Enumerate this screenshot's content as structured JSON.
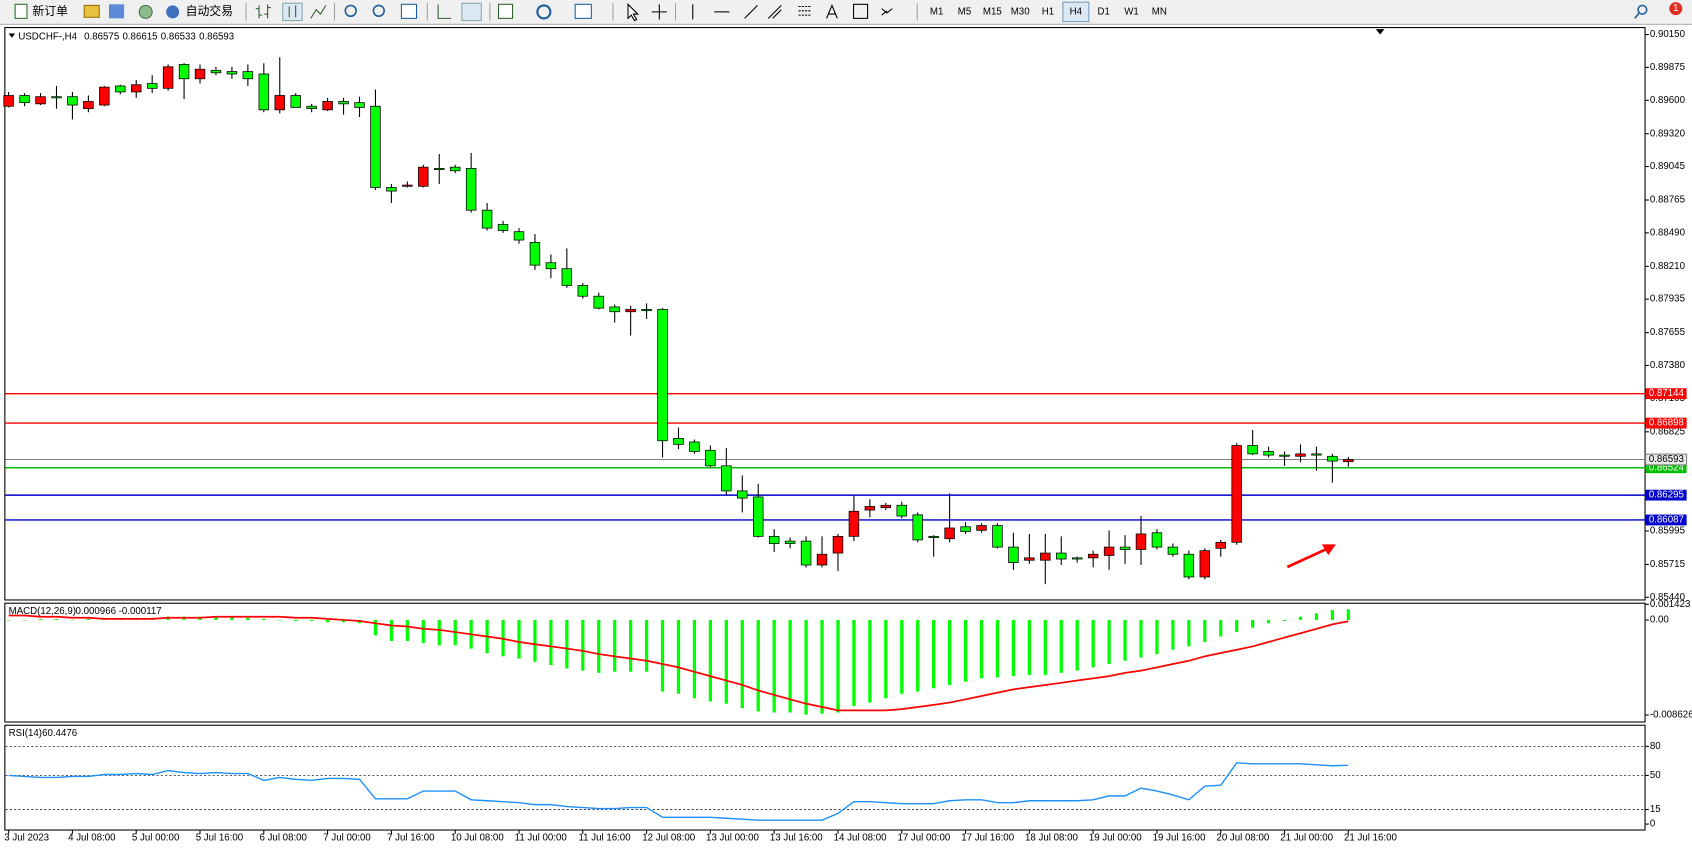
{
  "toolbar": {
    "new_order": "新订单",
    "auto_trading": "自动交易",
    "timeframes": [
      "M1",
      "M5",
      "M15",
      "M30",
      "H1",
      "H4",
      "D1",
      "W1",
      "MN"
    ],
    "active_timeframe": "H4",
    "notifications": 1
  },
  "chart_data": [
    {
      "type": "candlestick",
      "title": "USDCHF-,H4",
      "up_color": "#ff0000",
      "down_color": "#00ff00",
      "price_line_color": "#808080",
      "open": [
        0.8955,
        0.8964,
        0.8957,
        0.8963,
        0.8963,
        0.8953,
        0.8956,
        0.8972,
        0.8967,
        0.8974,
        0.897,
        0.899,
        0.8978,
        0.8985,
        0.8984,
        0.8984,
        0.8982,
        0.8952,
        0.8964,
        0.8955,
        0.8952,
        0.8959,
        0.8958,
        0.8955,
        0.8887,
        0.8888,
        0.8888,
        0.8903,
        0.8904,
        0.8903,
        0.8868,
        0.8856,
        0.885,
        0.8841,
        0.8824,
        0.8819,
        0.8805,
        0.8796,
        0.8787,
        0.8783,
        0.8785,
        0.8785,
        0.8677,
        0.8674,
        0.8667,
        0.8654,
        0.8633,
        0.8628,
        0.8595,
        0.8591,
        0.8591,
        0.8571,
        0.8581,
        0.8595,
        0.8617,
        0.8619,
        0.8621,
        0.8613,
        0.8595,
        0.8593,
        0.8603,
        0.86,
        0.8604,
        0.8586,
        0.8575,
        0.8575,
        0.8581,
        0.8577,
        0.8577,
        0.8579,
        0.8586,
        0.8584,
        0.8598,
        0.8586,
        0.858,
        0.8561,
        0.8585,
        0.859,
        0.8671,
        0.8666,
        0.8663,
        0.8662,
        0.8664,
        0.8662,
        0.86575
      ],
      "high": [
        0.8967,
        0.8966,
        0.8966,
        0.8972,
        0.8967,
        0.8964,
        0.8972,
        0.8973,
        0.8977,
        0.8981,
        0.899,
        0.8991,
        0.899,
        0.8988,
        0.8988,
        0.899,
        0.8991,
        0.8996,
        0.8966,
        0.8957,
        0.8962,
        0.8962,
        0.8963,
        0.8969,
        0.889,
        0.8892,
        0.8906,
        0.8915,
        0.8906,
        0.8916,
        0.8874,
        0.8859,
        0.8853,
        0.8848,
        0.8831,
        0.8836,
        0.8807,
        0.8799,
        0.8789,
        0.8788,
        0.879,
        0.8786,
        0.8686,
        0.8676,
        0.8671,
        0.8669,
        0.8646,
        0.8639,
        0.8601,
        0.8594,
        0.8595,
        0.8595,
        0.8597,
        0.8629,
        0.8626,
        0.8623,
        0.8624,
        0.8615,
        0.8596,
        0.8631,
        0.8607,
        0.8606,
        0.8606,
        0.8598,
        0.8597,
        0.8597,
        0.8595,
        0.8578,
        0.8583,
        0.86,
        0.8596,
        0.8612,
        0.8601,
        0.8589,
        0.8583,
        0.8585,
        0.8592,
        0.8673,
        0.8684,
        0.867,
        0.8666,
        0.8672,
        0.867,
        0.8664,
        0.86615
      ],
      "low": [
        0.8954,
        0.8955,
        0.8956,
        0.8953,
        0.8944,
        0.895,
        0.8955,
        0.8965,
        0.8962,
        0.8966,
        0.8968,
        0.8961,
        0.8974,
        0.8981,
        0.8978,
        0.8972,
        0.895,
        0.8949,
        0.8954,
        0.895,
        0.8951,
        0.8948,
        0.8946,
        0.8885,
        0.8874,
        0.8887,
        0.8887,
        0.889,
        0.8899,
        0.8866,
        0.8851,
        0.8849,
        0.884,
        0.8818,
        0.8811,
        0.8803,
        0.8794,
        0.8785,
        0.8774,
        0.8763,
        0.8777,
        0.8661,
        0.8668,
        0.8664,
        0.8653,
        0.863,
        0.8615,
        0.8594,
        0.8582,
        0.8585,
        0.8569,
        0.8569,
        0.8566,
        0.8591,
        0.8611,
        0.8617,
        0.861,
        0.859,
        0.8578,
        0.859,
        0.8597,
        0.8598,
        0.8585,
        0.8567,
        0.8572,
        0.8555,
        0.8571,
        0.8573,
        0.8569,
        0.8567,
        0.8572,
        0.8571,
        0.8584,
        0.8578,
        0.8559,
        0.8559,
        0.8578,
        0.8588,
        0.8663,
        0.8661,
        0.8654,
        0.8657,
        0.865,
        0.864,
        0.86533
      ],
      "close": [
        0.8964,
        0.8958,
        0.8963,
        0.8962,
        0.8956,
        0.8959,
        0.8971,
        0.8967,
        0.8973,
        0.897,
        0.8988,
        0.8978,
        0.8986,
        0.8983,
        0.8982,
        0.8978,
        0.8952,
        0.8964,
        0.8954,
        0.8953,
        0.8959,
        0.8957,
        0.8954,
        0.8887,
        0.8884,
        0.8889,
        0.8904,
        0.8902,
        0.8901,
        0.8868,
        0.8853,
        0.8851,
        0.8843,
        0.8822,
        0.8819,
        0.8805,
        0.8796,
        0.8786,
        0.8783,
        0.8785,
        0.8784,
        0.8675,
        0.8672,
        0.8666,
        0.8654,
        0.8633,
        0.8627,
        0.8595,
        0.8589,
        0.8589,
        0.8571,
        0.858,
        0.8595,
        0.8616,
        0.862,
        0.8621,
        0.8612,
        0.8592,
        0.8594,
        0.8602,
        0.8599,
        0.8604,
        0.8586,
        0.8573,
        0.8577,
        0.8581,
        0.8576,
        0.8576,
        0.858,
        0.8586,
        0.8584,
        0.8597,
        0.8586,
        0.858,
        0.8561,
        0.8583,
        0.859,
        0.8671,
        0.8664,
        0.8663,
        0.8662,
        0.8664,
        0.8663,
        0.8658,
        0.86593
      ],
      "ylim": [
        0.8544,
        0.9015
      ],
      "yticks": [
        {
          "value": 0.9015,
          "label": "0.90150"
        },
        0.89875,
        {
          "value": 0.896,
          "label": "0.89600"
        },
        {
          "value": 0.8932,
          "label": "0.89320"
        },
        0.89045,
        0.88765,
        {
          "value": 0.8849,
          "label": "0.88490"
        },
        {
          "value": 0.8821,
          "label": "0.88210"
        },
        0.87935,
        0.87655,
        {
          "value": 0.8738,
          "label": "0.87380"
        },
        0.87105,
        0.86825,
        0.85995,
        0.85715,
        {
          "value": 0.8544,
          "label": "0.85440"
        }
      ],
      "levels": [
        {
          "value": 0.87144,
          "color": "#ff0000"
        },
        {
          "value": 0.86898,
          "color": "#ff0000"
        },
        {
          "value": 0.86524,
          "color": "#00c000"
        },
        {
          "value": 0.86295,
          "color": "#0000cc"
        },
        {
          "value": 0.86087,
          "color": "#0000cc"
        }
      ],
      "x_labels": [
        "3 Jul 2023",
        "4 Jul 08:00",
        "5 Jul 00:00",
        "5 Jul 16:00",
        "6 Jul 08:00",
        "7 Jul 00:00",
        "7 Jul 16:00",
        "10 Jul 08:00",
        "11 Jul 00:00",
        "11 Jul 16:00",
        "12 Jul 08:00",
        "13 Jul 00:00",
        "13 Jul 16:00",
        "14 Jul 08:00",
        "17 Jul 00:00",
        "17 Jul 16:00",
        "18 Jul 08:00",
        "19 Jul 00:00",
        "19 Jul 16:00",
        "20 Jul 08:00",
        "21 Jul 00:00",
        "21 Jul 16:00"
      ]
    },
    {
      "type": "macd",
      "title": "MACD(12,26,9)",
      "histogram": {
        "color": "#00ff00",
        "values": [
          0,
          0,
          0.0001,
          0.0001,
          0,
          0.0001,
          0.0001,
          0.0001,
          0.0002,
          0.0002,
          0.0003,
          0.0003,
          0.0003,
          0.0003,
          0.0003,
          0.0002,
          0.0001,
          0,
          -0.0001,
          -0.0001,
          -0.0002,
          -0.0002,
          -0.0003,
          -0.0014,
          -0.0019,
          -0.0019,
          -0.0021,
          -0.0023,
          -0.0023,
          -0.0026,
          -0.003,
          -0.0033,
          -0.0035,
          -0.0038,
          -0.0041,
          -0.0044,
          -0.0046,
          -0.0048,
          -0.0047,
          -0.0047,
          -0.0047,
          -0.0065,
          -0.0067,
          -0.0071,
          -0.0074,
          -0.0076,
          -0.008,
          -0.0083,
          -0.0084,
          -0.0084,
          -0.0086,
          -0.0085,
          -0.0084,
          -0.0078,
          -0.0075,
          -0.0071,
          -0.0067,
          -0.0065,
          -0.0062,
          -0.0059,
          -0.0056,
          -0.0053,
          -0.0052,
          -0.0051,
          -0.005,
          -0.005,
          -0.0048,
          -0.0046,
          -0.0043,
          -0.004,
          -0.0037,
          -0.0034,
          -0.0031,
          -0.0027,
          -0.0024,
          -0.002,
          -0.0015,
          -0.0011,
          -0.0007,
          -0.0003,
          -0.0001,
          0.0003,
          0.0006,
          0.0009,
          0.000966
        ]
      },
      "signal": {
        "color": "#ff0000",
        "values": [
          0.0004,
          0.0004,
          0.0003,
          0.0003,
          0.0002,
          0.0002,
          0.0001,
          0.0001,
          0.0001,
          0.0001,
          0.0002,
          0.0002,
          0.0002,
          0.0003,
          0.0003,
          0.0003,
          0.0003,
          0.0003,
          0.0002,
          0.0002,
          0.0001,
          0,
          -0.0001,
          -0.0003,
          -0.0005,
          -0.0006,
          -0.0008,
          -0.0009,
          -0.0011,
          -0.0013,
          -0.0015,
          -0.0017,
          -0.002,
          -0.0022,
          -0.0024,
          -0.0026,
          -0.0028,
          -0.0031,
          -0.0033,
          -0.0035,
          -0.0037,
          -0.004,
          -0.0043,
          -0.0047,
          -0.0051,
          -0.0055,
          -0.0059,
          -0.0064,
          -0.0068,
          -0.0072,
          -0.0076,
          -0.0079,
          -0.0082,
          -0.0082,
          -0.0082,
          -0.0082,
          -0.0081,
          -0.0079,
          -0.0077,
          -0.0075,
          -0.0072,
          -0.0069,
          -0.0066,
          -0.0063,
          -0.0061,
          -0.0059,
          -0.0057,
          -0.0055,
          -0.0053,
          -0.0051,
          -0.0048,
          -0.0046,
          -0.0043,
          -0.004,
          -0.0037,
          -0.0033,
          -0.003,
          -0.0027,
          -0.0024,
          -0.002,
          -0.0016,
          -0.0012,
          -0.0008,
          -0.0004,
          -0.000117
        ]
      },
      "ylim": [
        -0.008626,
        0.001423
      ],
      "yticks": [
        0.001423,
        {
          "value": 0,
          "label": "0.00"
        },
        -0.008626
      ]
    },
    {
      "type": "line",
      "title": "RSI(14)",
      "color": "#1e90ff",
      "values": [
        50,
        49,
        48,
        48,
        49,
        49,
        51,
        51,
        52,
        51,
        55,
        53,
        52,
        53,
        52,
        52,
        45,
        48,
        46,
        45,
        47,
        47,
        46,
        26,
        26,
        26,
        34,
        34,
        34,
        25,
        24,
        23,
        22,
        20,
        20,
        18,
        17,
        16,
        16,
        17,
        17,
        7,
        7,
        7,
        7,
        6,
        5,
        4,
        4,
        4,
        4,
        4,
        11,
        23,
        23,
        22,
        21,
        21,
        21,
        24,
        25,
        25,
        22,
        22,
        24,
        24,
        24,
        24,
        25,
        29,
        29,
        37,
        34,
        30,
        25,
        39,
        40,
        63,
        62,
        62,
        62,
        62,
        61,
        60,
        60.4476
      ],
      "ylim": [
        0,
        100
      ],
      "yticks": [
        80,
        50,
        15,
        0
      ]
    }
  ]
}
